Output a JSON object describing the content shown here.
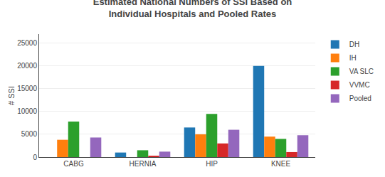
{
  "chart_data": {
    "type": "bar",
    "title": "Estimated National Numbers of SSI Based on\nIndividual Hospitals and Pooled Rates",
    "ylabel": "# SSI",
    "categories": [
      "CABG",
      "HERNIA",
      "HIP",
      "KNEE"
    ],
    "series": [
      {
        "name": "DH",
        "values": [
          0,
          1000,
          6500,
          20000
        ]
      },
      {
        "name": "IH",
        "values": [
          3800,
          0,
          5000,
          4500
        ]
      },
      {
        "name": "VA SLC",
        "values": [
          7800,
          1500,
          9500,
          4000
        ]
      },
      {
        "name": "VVMC",
        "values": [
          0,
          300,
          3000,
          1100
        ]
      },
      {
        "name": "Pooled",
        "values": [
          4300,
          1200,
          6000,
          4800
        ]
      }
    ],
    "ylim": [
      0,
      27000
    ],
    "yticks": [
      0,
      5000,
      10000,
      15000,
      20000,
      25000
    ],
    "grid": true,
    "legend": "upper right"
  }
}
